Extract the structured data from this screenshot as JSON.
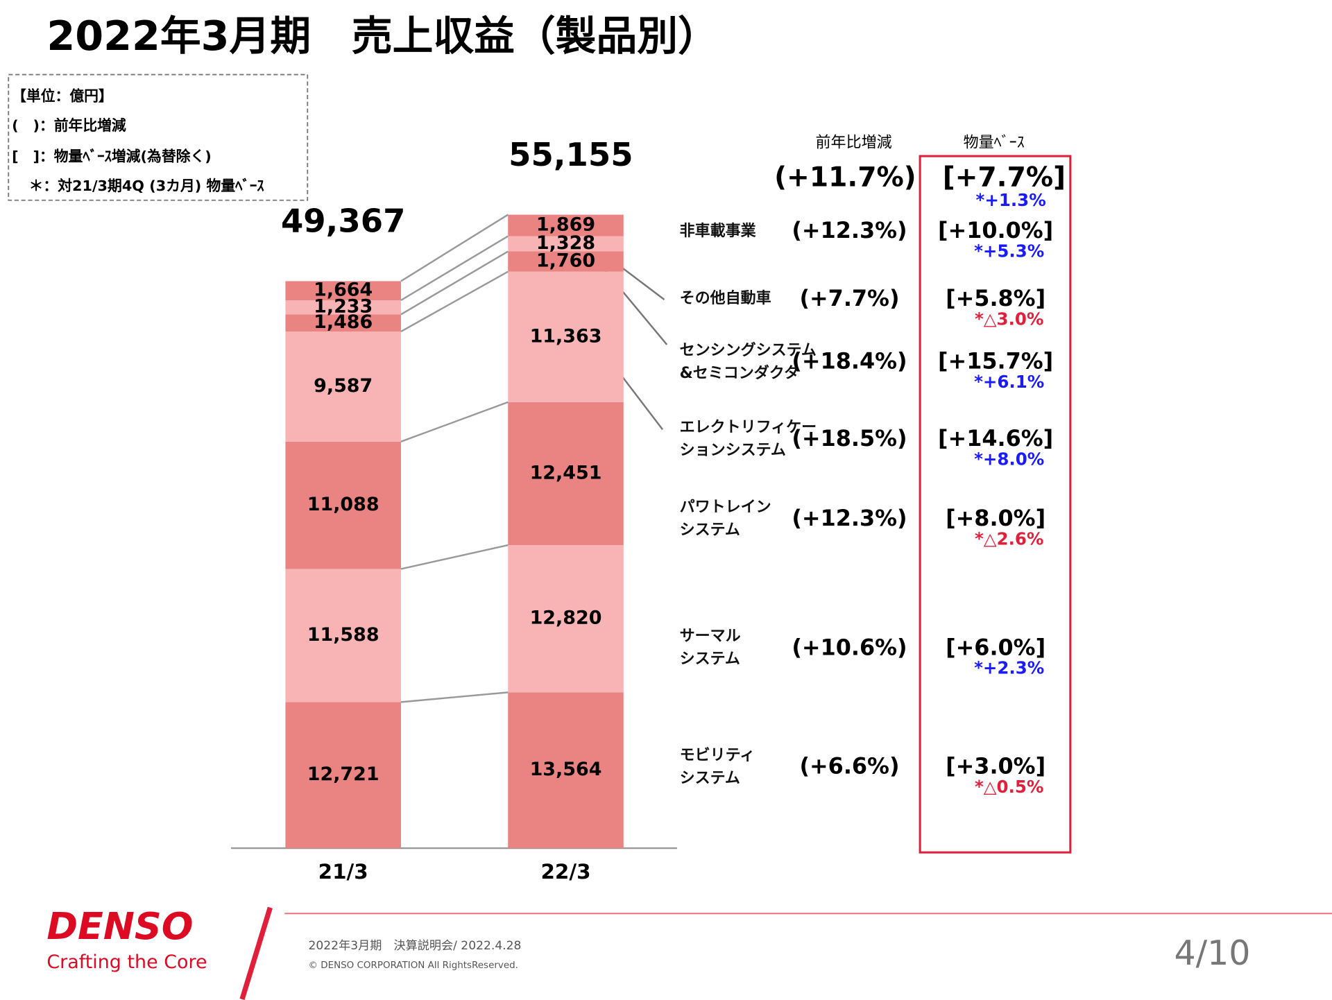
{
  "header": {
    "title": "2022年3月期　売上収益（製品別）"
  },
  "notes": [
    "【単位：億円】",
    "(　)：前年比増減",
    "[　]：物量ﾍﾞｰｽ増減(為替除く)",
    "＊：対21/3期4Q (3カ月) 物量ﾍﾞｰｽ"
  ],
  "chart_data": {
    "type": "stacked_bar",
    "categories": [
      "21/3",
      "22/3"
    ],
    "totals": [
      49367,
      55155
    ],
    "total_labels": [
      "49,367",
      "55,155"
    ],
    "column_headers": [
      "前年比増減",
      "物量ﾍﾞｰｽ"
    ],
    "total_growth": {
      "yoy": "(+11.7%)",
      "volume": "[+7.7%]",
      "q4": "*+1.3%",
      "q4_color": "#1a1aff"
    },
    "series": [
      {
        "name": "モビリティ\nシステム",
        "color": "#e98483",
        "values": [
          12721,
          13564
        ],
        "value_labels": [
          "12,721",
          "13,564"
        ],
        "yoy": "(+6.6%)",
        "volume": "[+3.0%]",
        "q4": "*△0.5%",
        "q4_color": "#e0203a"
      },
      {
        "name": "サーマル\nシステム",
        "color": "#f8b4b5",
        "values": [
          11588,
          12820
        ],
        "value_labels": [
          "11,588",
          "12,820"
        ],
        "yoy": "(+10.6%)",
        "volume": "[+6.0%]",
        "q4": "*+2.3%",
        "q4_color": "#1a1aff"
      },
      {
        "name": "パワトレイン\nシステム",
        "color": "#e98483",
        "values": [
          11088,
          12451
        ],
        "value_labels": [
          "11,088",
          "12,451"
        ],
        "yoy": "(+12.3%)",
        "volume": "[+8.0%]",
        "q4": "*△2.6%",
        "q4_color": "#e0203a"
      },
      {
        "name": "エレクトリフィケー\nションシステム",
        "color": "#f8b4b5",
        "values": [
          9587,
          11363
        ],
        "value_labels": [
          "9,587",
          "11,363"
        ],
        "yoy": "(+18.5%)",
        "volume": "[+14.6%]",
        "q4": "*+8.0%",
        "q4_color": "#1a1aff"
      },
      {
        "name": "センシングシステム\n&セミコンダクタ",
        "color": "#e98483",
        "values": [
          1486,
          1760
        ],
        "value_labels": [
          "1,486",
          "1,760"
        ],
        "yoy": "(+18.4%)",
        "volume": "[+15.7%]",
        "q4": "*+6.1%",
        "q4_color": "#1a1aff"
      },
      {
        "name": "その他自動車",
        "color": "#f8b4b5",
        "values": [
          1233,
          1328
        ],
        "value_labels": [
          "1,233",
          "1,328"
        ],
        "yoy": "(+7.7%)",
        "volume": "[+5.8%]",
        "q4": "*△3.0%",
        "q4_color": "#e0203a"
      },
      {
        "name": "非車載事業",
        "color": "#e98483",
        "values": [
          1664,
          1869
        ],
        "value_labels": [
          "1,664",
          "1,869"
        ],
        "yoy": "(+12.3%)",
        "volume": "[+10.0%]",
        "q4": "*+5.3%",
        "q4_color": "#1a1aff"
      }
    ]
  },
  "footer": {
    "logo": "DENSO",
    "tagline": "Crafting the Core",
    "event": "2022年3月期　決算説明会/ 2022.4.28",
    "copyright": "© DENSO CORPORATION All RightsReserved.",
    "page": "4/10"
  }
}
